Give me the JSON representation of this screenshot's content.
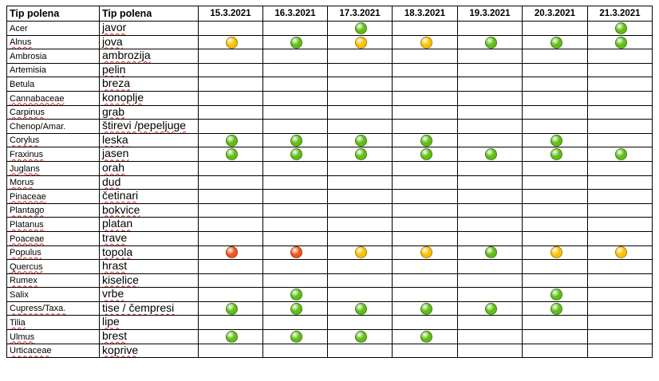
{
  "colors": {
    "green": "#5fbf16",
    "yellow": "#ffc000",
    "orange": "#f0561a"
  },
  "header": {
    "col1": "Tip polena",
    "col2": "Tip polena",
    "dates": [
      "15.3.2021",
      "16.3.2021",
      "17.3.2021",
      "18.3.2021",
      "19.3.2021",
      "20.3.2021",
      "21.3.2021"
    ]
  },
  "rows": [
    {
      "latin": "Acer",
      "local": "javor",
      "levels": [
        "",
        "",
        "green",
        "",
        "",
        "",
        "green"
      ]
    },
    {
      "latin": "Alnus",
      "local": "jova",
      "levels": [
        "yellow",
        "green",
        "yellow",
        "yellow",
        "green",
        "green",
        "green"
      ]
    },
    {
      "latin": "Ambrosia",
      "local": "ambrozija",
      "levels": [
        "",
        "",
        "",
        "",
        "",
        "",
        ""
      ]
    },
    {
      "latin": "Artemisia",
      "local": "pelin",
      "levels": [
        "",
        "",
        "",
        "",
        "",
        "",
        ""
      ]
    },
    {
      "latin": "Betula",
      "local": "breza",
      "levels": [
        "",
        "",
        "",
        "",
        "",
        "",
        ""
      ]
    },
    {
      "latin": "Cannabaceae",
      "local": "konoplje",
      "levels": [
        "",
        "",
        "",
        "",
        "",
        "",
        ""
      ]
    },
    {
      "latin": "Carpinus",
      "local": "grab",
      "levels": [
        "",
        "",
        "",
        "",
        "",
        "",
        ""
      ]
    },
    {
      "latin": "Chenop/Amar.",
      "local": "štirevi /pepeljuge",
      "levels": [
        "",
        "",
        "",
        "",
        "",
        "",
        ""
      ]
    },
    {
      "latin": "Corylus",
      "local": "leska",
      "levels": [
        "green",
        "green",
        "green",
        "green",
        "",
        "green",
        ""
      ]
    },
    {
      "latin": "Fraxinus",
      "local": "jasen",
      "levels": [
        "green",
        "green",
        "green",
        "green",
        "green",
        "green",
        "green"
      ]
    },
    {
      "latin": "Juglans",
      "local": "orah",
      "levels": [
        "",
        "",
        "",
        "",
        "",
        "",
        ""
      ]
    },
    {
      "latin": "Morus",
      "local": "dud",
      "levels": [
        "",
        "",
        "",
        "",
        "",
        "",
        ""
      ]
    },
    {
      "latin": "Pinaceae",
      "local": "četinari",
      "levels": [
        "",
        "",
        "",
        "",
        "",
        "",
        ""
      ]
    },
    {
      "latin": "Plantago",
      "local": "bokvice",
      "levels": [
        "",
        "",
        "",
        "",
        "",
        "",
        ""
      ]
    },
    {
      "latin": "Platanus",
      "local": "platan",
      "levels": [
        "",
        "",
        "",
        "",
        "",
        "",
        ""
      ]
    },
    {
      "latin": "Poaceae",
      "local": "trave",
      "levels": [
        "",
        "",
        "",
        "",
        "",
        "",
        ""
      ]
    },
    {
      "latin": "Populus",
      "local": "topola",
      "levels": [
        "orange",
        "orange",
        "yellow",
        "yellow",
        "green",
        "yellow",
        "yellow"
      ]
    },
    {
      "latin": "Quercus",
      "local": "hrast",
      "levels": [
        "",
        "",
        "",
        "",
        "",
        "",
        ""
      ]
    },
    {
      "latin": "Rumex",
      "local": "kiselice",
      "levels": [
        "",
        "",
        "",
        "",
        "",
        "",
        ""
      ]
    },
    {
      "latin": "Salix",
      "local": "vrbe",
      "levels": [
        "",
        "green",
        "",
        "",
        "",
        "green",
        ""
      ]
    },
    {
      "latin": "Cupress/Taxa.",
      "local": "tise / čempresi",
      "levels": [
        "green",
        "green",
        "green",
        "green",
        "green",
        "green",
        ""
      ]
    },
    {
      "latin": "Tilia",
      "local": "lipe",
      "levels": [
        "",
        "",
        "",
        "",
        "",
        "",
        ""
      ]
    },
    {
      "latin": "Ulmus",
      "local": "brest",
      "levels": [
        "green",
        "green",
        "green",
        "green",
        "",
        "",
        ""
      ]
    },
    {
      "latin": "Urticaceae",
      "local": "koprive",
      "levels": [
        "",
        "",
        "",
        "",
        "",
        "",
        ""
      ]
    }
  ]
}
